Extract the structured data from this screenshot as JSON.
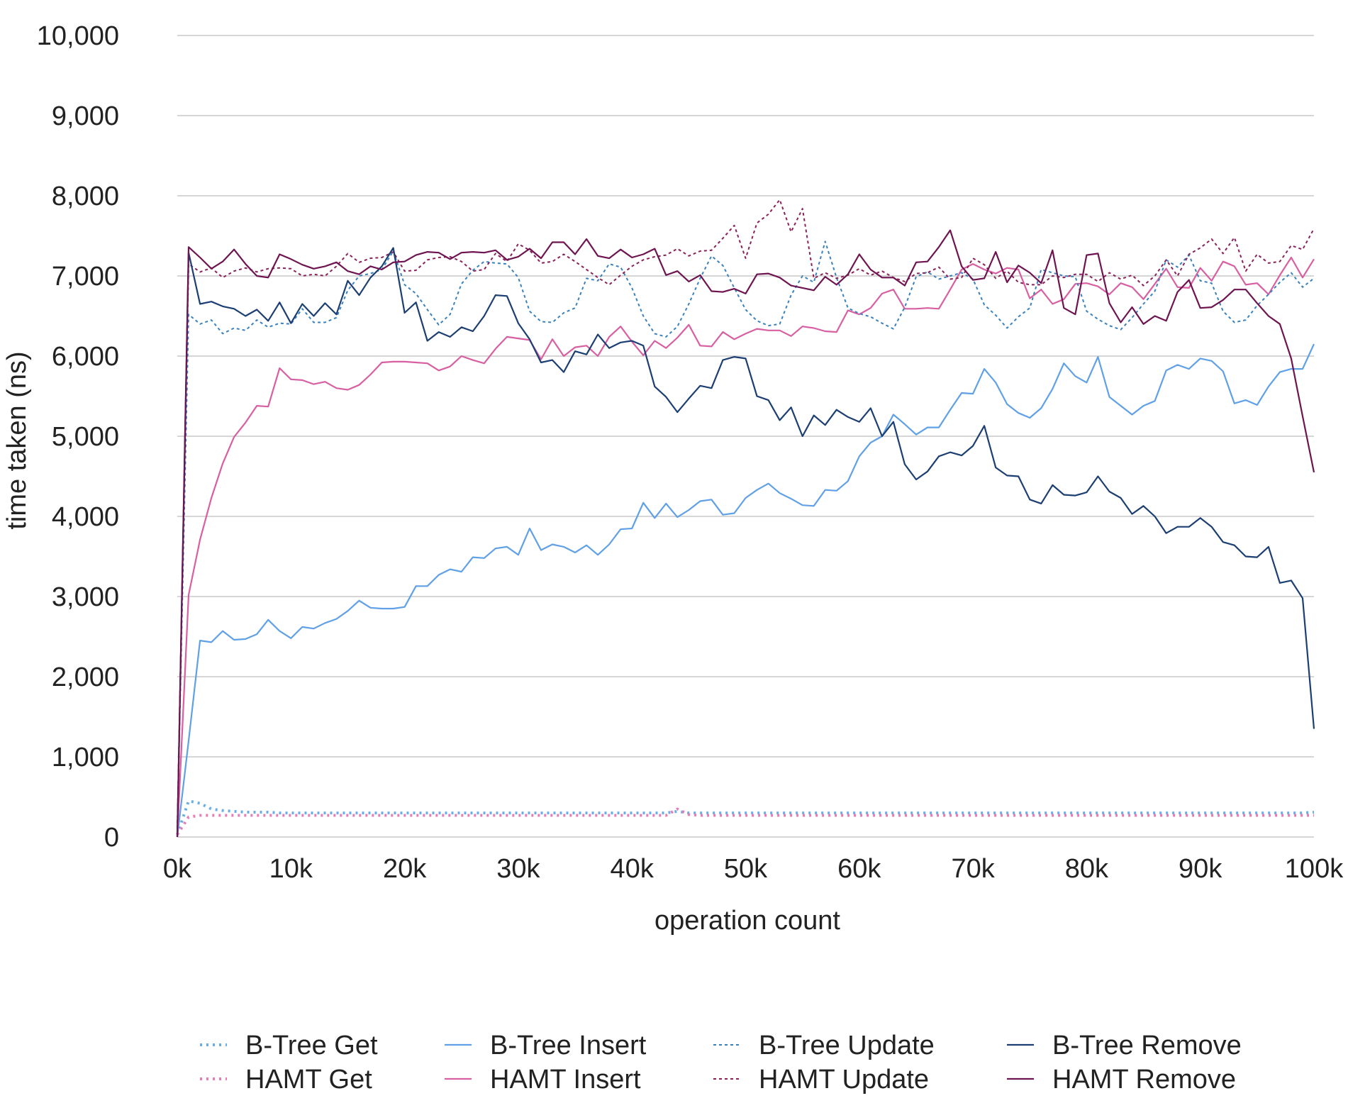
{
  "chart_data": {
    "type": "line",
    "title": "",
    "xlabel": "operation count",
    "ylabel": "time taken (ns)",
    "xlim": [
      0,
      100
    ],
    "ylim": [
      0,
      10000
    ],
    "x_step": 1,
    "x_ticks": [
      {
        "value": 0,
        "label": "0k"
      },
      {
        "value": 10,
        "label": "10k"
      },
      {
        "value": 20,
        "label": "20k"
      },
      {
        "value": 30,
        "label": "30k"
      },
      {
        "value": 40,
        "label": "40k"
      },
      {
        "value": 50,
        "label": "50k"
      },
      {
        "value": 60,
        "label": "60k"
      },
      {
        "value": 70,
        "label": "70k"
      },
      {
        "value": 80,
        "label": "80k"
      },
      {
        "value": 90,
        "label": "90k"
      },
      {
        "value": 100,
        "label": "100k"
      }
    ],
    "y_ticks": [
      {
        "value": 0,
        "label": "0"
      },
      {
        "value": 1000,
        "label": "1,000"
      },
      {
        "value": 2000,
        "label": "2,000"
      },
      {
        "value": 3000,
        "label": "3,000"
      },
      {
        "value": 4000,
        "label": "4,000"
      },
      {
        "value": 5000,
        "label": "5,000"
      },
      {
        "value": 6000,
        "label": "6,000"
      },
      {
        "value": 7000,
        "label": "7,000"
      },
      {
        "value": 8000,
        "label": "8,000"
      },
      {
        "value": 9000,
        "label": "9,000"
      },
      {
        "value": 10000,
        "label": "10,000"
      }
    ],
    "grid": true,
    "legend_position": "bottom",
    "series": [
      {
        "name": "B-Tree Get",
        "color": "#6aaee8",
        "style": "dotted",
        "values": [
          30,
          450,
          420,
          350,
          330,
          320,
          310,
          310,
          310,
          300,
          300,
          300,
          300,
          300,
          300,
          300,
          300,
          300,
          300,
          300,
          300,
          300,
          300,
          300,
          300,
          300,
          300,
          300,
          300,
          300,
          300,
          300,
          300,
          300,
          300,
          300,
          300,
          300,
          300,
          300,
          300,
          300,
          300,
          300,
          320,
          300,
          300,
          300,
          300,
          300,
          300,
          300,
          300,
          300,
          300,
          300,
          300,
          300,
          300,
          300,
          300,
          300,
          300,
          300,
          300,
          300,
          300,
          300,
          300,
          300,
          300,
          300,
          300,
          300,
          300,
          300,
          300,
          300,
          300,
          300,
          300,
          300,
          300,
          300,
          300,
          300,
          300,
          300,
          300,
          300,
          300,
          300,
          300,
          300,
          300,
          300,
          300,
          300,
          300,
          300,
          310
        ]
      },
      {
        "name": "HAMT Get",
        "color": "#e77db4",
        "style": "dotted",
        "values": [
          30,
          250,
          270,
          270,
          270,
          270,
          270,
          270,
          270,
          270,
          270,
          270,
          270,
          270,
          270,
          270,
          270,
          270,
          270,
          270,
          270,
          270,
          270,
          270,
          270,
          270,
          270,
          270,
          270,
          270,
          270,
          270,
          270,
          270,
          270,
          270,
          270,
          270,
          270,
          270,
          270,
          270,
          270,
          270,
          350,
          280,
          270,
          270,
          270,
          270,
          270,
          270,
          270,
          270,
          270,
          270,
          270,
          270,
          270,
          270,
          270,
          270,
          270,
          270,
          270,
          270,
          270,
          270,
          270,
          270,
          270,
          270,
          270,
          270,
          270,
          270,
          270,
          270,
          270,
          270,
          270,
          270,
          270,
          270,
          270,
          270,
          270,
          270,
          270,
          270,
          270,
          270,
          270,
          270,
          270,
          270,
          270,
          270,
          270,
          270,
          270
        ]
      },
      {
        "name": "B-Tree Insert",
        "color": "#5fa0e6",
        "style": "solid",
        "values": [
          0,
          1200,
          2450,
          2430,
          2570,
          2460,
          2470,
          2530,
          2710,
          2570,
          2480,
          2620,
          2600,
          2670,
          2720,
          2820,
          2950,
          2860,
          2850,
          2850,
          2870,
          3130,
          3130,
          3270,
          3340,
          3310,
          3490,
          3480,
          3600,
          3620,
          3520,
          3850,
          3580,
          3650,
          3620,
          3550,
          3640,
          3520,
          3650,
          3840,
          3850,
          4170,
          3980,
          4160,
          3990,
          4080,
          4190,
          4210,
          4020,
          4040,
          4230,
          4330,
          4410,
          4290,
          4220,
          4140,
          4130,
          4330,
          4320,
          4440,
          4750,
          4920,
          5000,
          5270,
          5150,
          5020,
          5110,
          5110,
          5330,
          5540,
          5530,
          5840,
          5670,
          5400,
          5290,
          5230,
          5350,
          5590,
          5910,
          5750,
          5670,
          5990,
          5490,
          5380,
          5270,
          5380,
          5440,
          5820,
          5890,
          5840,
          5970,
          5940,
          5810,
          5410,
          5450,
          5390,
          5620,
          5800,
          5840,
          5840,
          6150
        ]
      },
      {
        "name": "HAMT Insert",
        "color": "#d85fa1",
        "style": "solid",
        "values": [
          0,
          3020,
          3710,
          4230,
          4660,
          4990,
          5170,
          5380,
          5370,
          5850,
          5710,
          5700,
          5650,
          5680,
          5600,
          5580,
          5640,
          5770,
          5920,
          5930,
          5930,
          5920,
          5910,
          5820,
          5870,
          6000,
          5950,
          5910,
          6090,
          6240,
          6220,
          6200,
          5960,
          6210,
          6000,
          6110,
          6130,
          6000,
          6240,
          6370,
          6180,
          6010,
          6190,
          6100,
          6230,
          6390,
          6130,
          6120,
          6300,
          6210,
          6280,
          6340,
          6320,
          6320,
          6250,
          6370,
          6350,
          6310,
          6300,
          6570,
          6520,
          6600,
          6780,
          6830,
          6590,
          6590,
          6600,
          6590,
          6830,
          7080,
          7150,
          7080,
          7030,
          7100,
          7080,
          6720,
          6830,
          6650,
          6710,
          6900,
          6910,
          6870,
          6770,
          6910,
          6860,
          6710,
          6900,
          7090,
          6860,
          6850,
          7100,
          6940,
          7180,
          7120,
          6890,
          6910,
          6770,
          7010,
          7230,
          6980,
          7210
        ]
      },
      {
        "name": "B-Tree Update",
        "color": "#3a82be",
        "style": "dotted",
        "values": [
          50,
          6520,
          6400,
          6450,
          6280,
          6350,
          6320,
          6450,
          6360,
          6410,
          6400,
          6590,
          6420,
          6420,
          6480,
          6820,
          7000,
          7030,
          7080,
          7310,
          6890,
          6780,
          6580,
          6390,
          6520,
          6900,
          7070,
          7180,
          7160,
          7150,
          6980,
          6560,
          6430,
          6420,
          6540,
          6600,
          6970,
          6940,
          7150,
          7110,
          6850,
          6500,
          6280,
          6240,
          6370,
          6650,
          6970,
          7250,
          7130,
          6850,
          6580,
          6440,
          6380,
          6400,
          6760,
          7000,
          6920,
          7430,
          6980,
          6600,
          6530,
          6490,
          6410,
          6340,
          6610,
          6990,
          7050,
          6960,
          7000,
          7040,
          6960,
          6640,
          6510,
          6350,
          6490,
          6600,
          7080,
          7040,
          7000,
          6990,
          6560,
          6460,
          6380,
          6330,
          6480,
          6650,
          6810,
          7200,
          7110,
          7260,
          6940,
          6910,
          6560,
          6420,
          6450,
          6630,
          6770,
          6920,
          7040,
          6860,
          6970
        ]
      },
      {
        "name": "HAMT Update",
        "color": "#8a2259",
        "style": "dotted",
        "values": [
          100,
          7150,
          7050,
          7100,
          6980,
          7060,
          7100,
          7050,
          7090,
          7100,
          7090,
          7000,
          7020,
          7000,
          7120,
          7280,
          7170,
          7220,
          7230,
          7300,
          7060,
          7070,
          7200,
          7230,
          7240,
          7180,
          7060,
          7080,
          7280,
          7180,
          7400,
          7320,
          7160,
          7180,
          7270,
          7180,
          7080,
          6980,
          6890,
          7010,
          7120,
          7200,
          7240,
          7260,
          7340,
          7250,
          7310,
          7320,
          7470,
          7630,
          7220,
          7660,
          7770,
          7950,
          7550,
          7840,
          6970,
          7040,
          6970,
          7010,
          7090,
          7010,
          7060,
          6980,
          6930,
          7030,
          7040,
          7110,
          6960,
          6980,
          7220,
          7140,
          6970,
          7060,
          6920,
          6890,
          6890,
          7000,
          6980,
          7020,
          7020,
          6930,
          7040,
          6960,
          7010,
          6880,
          7000,
          7200,
          7000,
          7270,
          7350,
          7460,
          7280,
          7480,
          7060,
          7270,
          7160,
          7180,
          7380,
          7330,
          7590
        ]
      },
      {
        "name": "B-Tree Remove",
        "color": "#1c3f73",
        "style": "solid",
        "values": [
          0,
          7290,
          6650,
          6680,
          6620,
          6590,
          6500,
          6580,
          6440,
          6670,
          6410,
          6650,
          6500,
          6660,
          6520,
          6940,
          6760,
          6980,
          7120,
          7350,
          6540,
          6670,
          6190,
          6300,
          6240,
          6360,
          6310,
          6500,
          6760,
          6750,
          6410,
          6210,
          5920,
          5950,
          5800,
          6060,
          6020,
          6270,
          6100,
          6170,
          6190,
          6130,
          5620,
          5490,
          5300,
          5470,
          5630,
          5600,
          5950,
          5990,
          5970,
          5500,
          5450,
          5200,
          5360,
          5000,
          5260,
          5140,
          5330,
          5240,
          5180,
          5350,
          5000,
          5180,
          4650,
          4460,
          4560,
          4750,
          4800,
          4760,
          4880,
          5130,
          4610,
          4510,
          4500,
          4210,
          4160,
          4390,
          4270,
          4260,
          4300,
          4500,
          4310,
          4230,
          4030,
          4130,
          4000,
          3790,
          3870,
          3870,
          3980,
          3870,
          3680,
          3640,
          3500,
          3490,
          3620,
          3170,
          3200,
          2980,
          1350
        ]
      },
      {
        "name": "HAMT Remove",
        "color": "#6e1450",
        "style": "solid",
        "values": [
          0,
          7360,
          7230,
          7090,
          7180,
          7330,
          7150,
          7000,
          6980,
          7270,
          7210,
          7140,
          7090,
          7120,
          7170,
          7060,
          7020,
          7120,
          7080,
          7170,
          7180,
          7260,
          7300,
          7290,
          7210,
          7290,
          7300,
          7290,
          7320,
          7200,
          7240,
          7340,
          7220,
          7420,
          7420,
          7270,
          7460,
          7250,
          7220,
          7330,
          7230,
          7270,
          7340,
          7010,
          7060,
          6930,
          7010,
          6810,
          6800,
          6840,
          6780,
          7020,
          7030,
          6980,
          6880,
          6850,
          6820,
          6990,
          6890,
          7020,
          7270,
          7080,
          6980,
          6980,
          6880,
          7170,
          7180,
          7360,
          7570,
          7120,
          6950,
          6970,
          7300,
          6920,
          7130,
          7040,
          6910,
          7320,
          6600,
          6520,
          7260,
          7280,
          6660,
          6420,
          6610,
          6400,
          6500,
          6440,
          6800,
          6950,
          6600,
          6610,
          6700,
          6830,
          6830,
          6660,
          6500,
          6400,
          5970,
          5250,
          4550
        ]
      }
    ]
  }
}
